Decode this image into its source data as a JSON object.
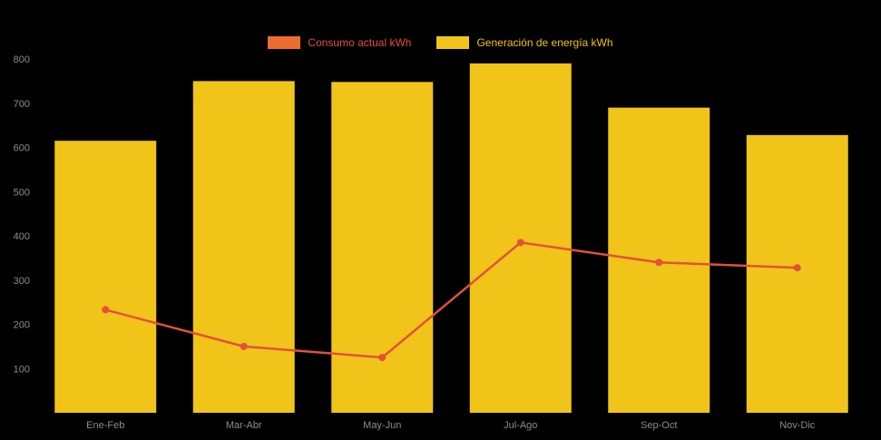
{
  "app": {
    "background_color": "#000000",
    "axis_label_color": "#8C8C8C"
  },
  "legend": {
    "items": [
      {
        "label": "Consumo actual kWh",
        "swatch_color": "#ED6C30",
        "label_color": "#E2513B"
      },
      {
        "label": "Generación de energía kWh",
        "swatch_color": "#F0C419",
        "label_color": "#F2C500"
      }
    ]
  },
  "chart_data": {
    "type": "bar+line",
    "title": "",
    "xlabel": "",
    "ylabel": "",
    "categories": [
      "Ene-Feb",
      "Mar-Abr",
      "May-Jun",
      "Jul-Ago",
      "Sep-Oct",
      "Nov-Dic"
    ],
    "series": [
      {
        "name": "Generación de energía kWh",
        "type": "bar",
        "color": "#F0C419",
        "values": [
          615,
          750,
          748,
          790,
          690,
          628
        ]
      },
      {
        "name": "Consumo actual kWh",
        "type": "line",
        "color": "#E2513B",
        "values": [
          233,
          150,
          125,
          385,
          340,
          328
        ]
      }
    ],
    "ylim": [
      0,
      800
    ],
    "yticks": [
      100,
      200,
      300,
      400,
      500,
      600,
      700,
      800
    ],
    "grid": false,
    "legend_position": "top"
  }
}
